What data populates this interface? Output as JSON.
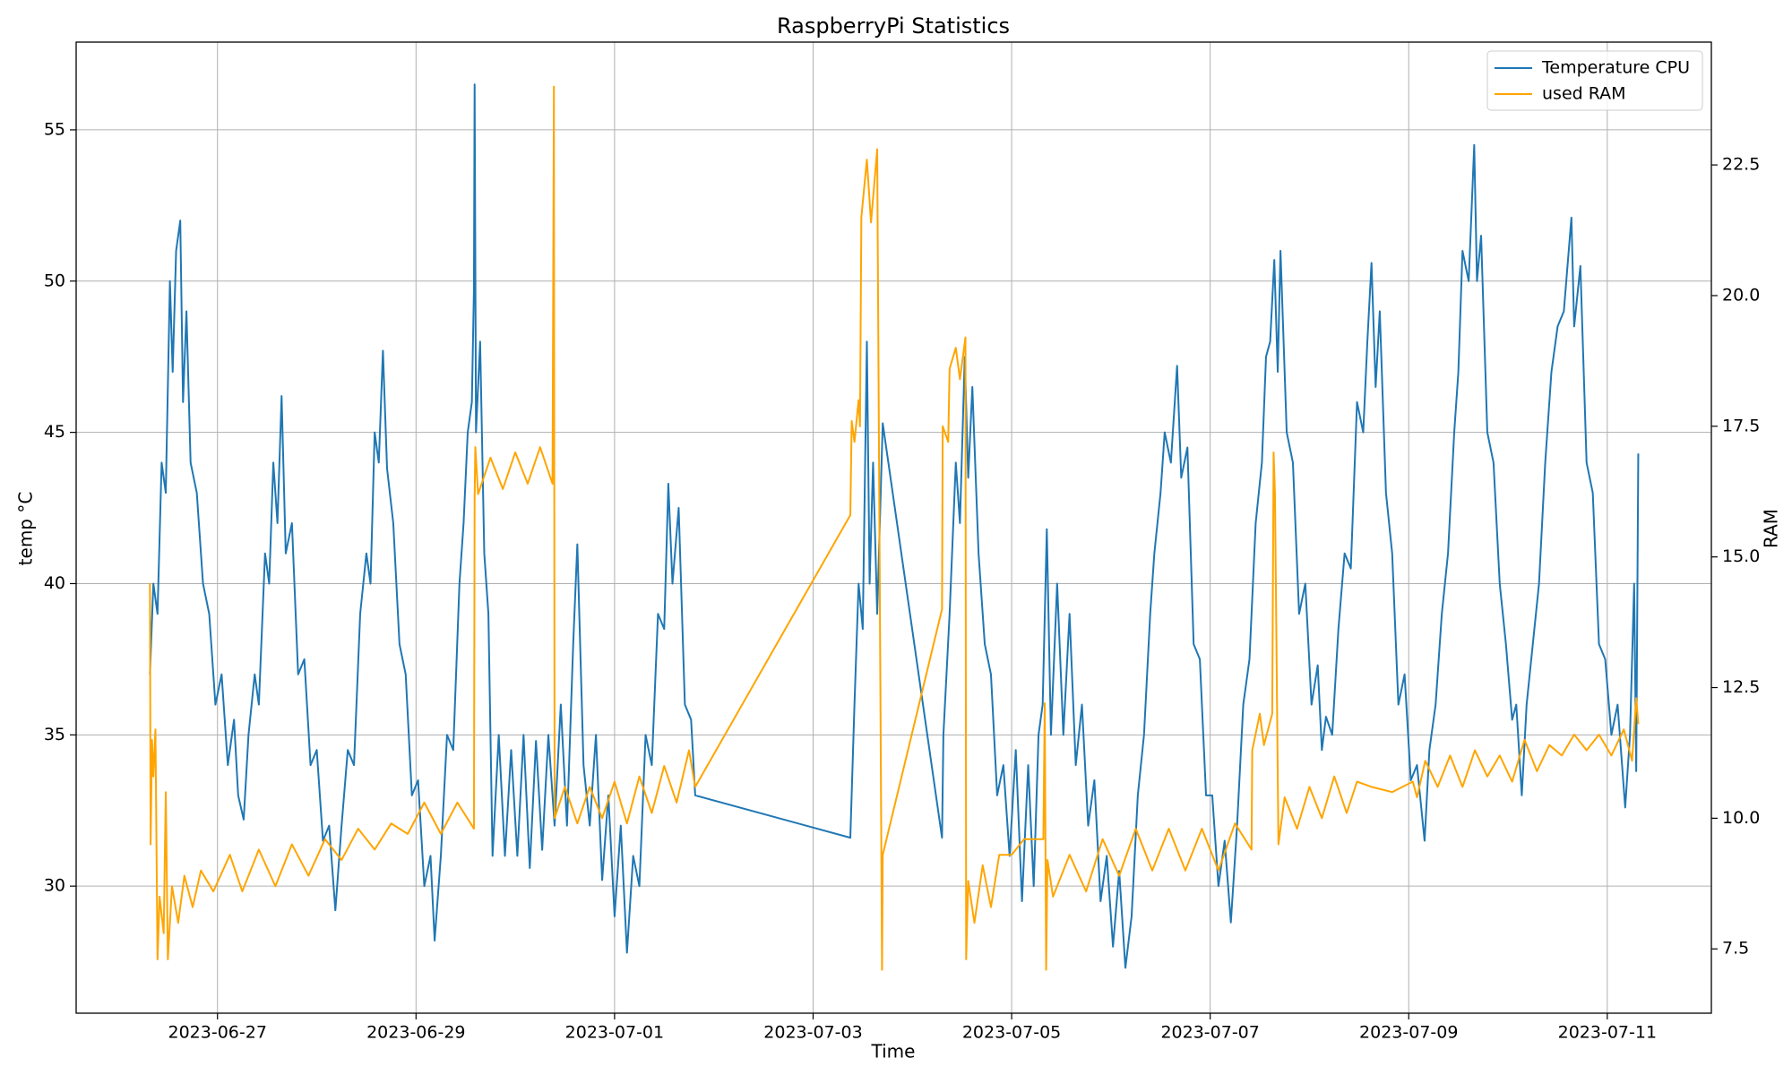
{
  "chart_data": {
    "type": "line",
    "title": "RaspberryPi Statistics",
    "x_label": "Time",
    "y_label": "temp °C",
    "y2_label": "RAM",
    "xlim": [
      "2023-06-25T13:50",
      "2023-07-12T01:10"
    ],
    "xticks": [
      "2023-06-27",
      "2023-06-29",
      "2023-07-01",
      "2023-07-03",
      "2023-07-05",
      "2023-07-07",
      "2023-07-09",
      "2023-07-11"
    ],
    "ylim": [
      25.8,
      57.9
    ],
    "yticks": [
      30,
      35,
      40,
      45,
      50,
      55
    ],
    "y2lim": [
      6.27,
      24.85
    ],
    "y2ticks": [
      7.5,
      {
        "value": 10,
        "label": "10.0"
      },
      12.5,
      {
        "value": 15,
        "label": "15.0"
      },
      17.5,
      {
        "value": 20,
        "label": "20.0"
      },
      22.5
    ],
    "grid": true,
    "legend": "upper right",
    "series": [
      {
        "name": "Temperature CPU",
        "color": "#1f77b4",
        "axis": "y",
        "x": [
          "2023-06-26T07:40",
          "2023-06-26T08:30",
          "2023-06-26T09:30",
          "2023-06-26T10:30",
          "2023-06-26T11:30",
          "2023-06-26T12:30",
          "2023-06-26T13:10",
          "2023-06-26T14:00",
          "2023-06-26T15:00",
          "2023-06-26T15:40",
          "2023-06-26T16:30",
          "2023-06-26T17:30",
          "2023-06-26T19:00",
          "2023-06-26T20:30",
          "2023-06-26T22:00",
          "2023-06-26T23:30",
          "2023-06-27T01:00",
          "2023-06-27T02:30",
          "2023-06-27T04:00",
          "2023-06-27T05:00",
          "2023-06-27T06:20",
          "2023-06-27T07:30",
          "2023-06-27T09:00",
          "2023-06-27T10:00",
          "2023-06-27T11:30",
          "2023-06-27T12:30",
          "2023-06-27T13:30",
          "2023-06-27T14:30",
          "2023-06-27T15:30",
          "2023-06-27T16:30",
          "2023-06-27T18:00",
          "2023-06-27T19:30",
          "2023-06-27T21:00",
          "2023-06-27T22:30",
          "2023-06-28T00:00",
          "2023-06-28T01:30",
          "2023-06-28T03:00",
          "2023-06-28T04:30",
          "2023-06-28T06:00",
          "2023-06-28T07:30",
          "2023-06-28T09:00",
          "2023-06-28T10:30",
          "2023-06-28T12:00",
          "2023-06-28T13:00",
          "2023-06-28T14:00",
          "2023-06-28T15:00",
          "2023-06-28T16:00",
          "2023-06-28T17:00",
          "2023-06-28T18:30",
          "2023-06-28T20:00",
          "2023-06-28T21:30",
          "2023-06-28T23:00",
          "2023-06-29T00:30",
          "2023-06-29T02:00",
          "2023-06-29T03:30",
          "2023-06-29T04:30",
          "2023-06-29T06:00",
          "2023-06-29T07:30",
          "2023-06-29T09:00",
          "2023-06-29T10:30",
          "2023-06-29T11:30",
          "2023-06-29T12:30",
          "2023-06-29T13:30",
          "2023-06-29T14:00",
          "2023-06-29T14:10",
          "2023-06-29T14:30",
          "2023-06-29T15:30",
          "2023-06-29T16:30",
          "2023-06-29T17:30",
          "2023-06-29T18:30",
          "2023-06-29T20:00",
          "2023-06-29T21:30",
          "2023-06-29T23:00",
          "2023-06-30T00:30",
          "2023-06-30T02:00",
          "2023-06-30T03:30",
          "2023-06-30T05:00",
          "2023-06-30T06:30",
          "2023-06-30T08:00",
          "2023-06-30T09:30",
          "2023-06-30T11:00",
          "2023-06-30T12:30",
          "2023-06-30T14:00",
          "2023-06-30T15:00",
          "2023-06-30T16:30",
          "2023-06-30T18:00",
          "2023-06-30T19:30",
          "2023-06-30T21:00",
          "2023-06-30T22:30",
          "2023-07-01T00:00",
          "2023-07-01T01:30",
          "2023-07-01T03:00",
          "2023-07-01T04:30",
          "2023-07-01T06:00",
          "2023-07-01T07:30",
          "2023-07-01T09:00",
          "2023-07-01T10:30",
          "2023-07-01T12:00",
          "2023-07-01T13:00",
          "2023-07-01T14:00",
          "2023-07-01T15:30",
          "2023-07-01T17:00",
          "2023-07-01T18:30",
          "2023-07-01T19:30",
          "2023-07-03T09:00",
          "2023-07-03T10:00",
          "2023-07-03T11:00",
          "2023-07-03T12:00",
          "2023-07-03T13:00",
          "2023-07-03T13:40",
          "2023-07-03T14:30",
          "2023-07-03T15:30",
          "2023-07-03T16:50",
          "2023-07-04T07:10",
          "2023-07-04T07:30",
          "2023-07-04T09:00",
          "2023-07-04T10:30",
          "2023-07-04T11:30",
          "2023-07-04T12:40",
          "2023-07-04T13:30",
          "2023-07-04T14:30",
          "2023-07-04T16:00",
          "2023-07-04T17:30",
          "2023-07-04T19:00",
          "2023-07-04T20:30",
          "2023-07-04T22:00",
          "2023-07-04T23:30",
          "2023-07-05T01:00",
          "2023-07-05T02:30",
          "2023-07-05T04:00",
          "2023-07-05T05:20",
          "2023-07-05T06:30",
          "2023-07-05T07:30",
          "2023-07-05T08:30",
          "2023-07-05T09:30",
          "2023-07-05T11:00",
          "2023-07-05T12:30",
          "2023-07-05T14:00",
          "2023-07-05T15:30",
          "2023-07-05T17:00",
          "2023-07-05T18:30",
          "2023-07-05T20:00",
          "2023-07-05T21:30",
          "2023-07-05T23:00",
          "2023-07-06T00:30",
          "2023-07-06T02:00",
          "2023-07-06T03:30",
          "2023-07-06T05:00",
          "2023-07-06T06:30",
          "2023-07-06T08:00",
          "2023-07-06T09:30",
          "2023-07-06T10:30",
          "2023-07-06T12:00",
          "2023-07-06T13:00",
          "2023-07-06T14:30",
          "2023-07-06T16:00",
          "2023-07-06T17:00",
          "2023-07-06T18:30",
          "2023-07-06T20:00",
          "2023-07-06T21:30",
          "2023-07-06T23:00",
          "2023-07-07T00:30",
          "2023-07-07T02:00",
          "2023-07-07T03:30",
          "2023-07-07T05:00",
          "2023-07-07T06:30",
          "2023-07-07T08:00",
          "2023-07-07T09:30",
          "2023-07-07T11:00",
          "2023-07-07T12:30",
          "2023-07-07T13:30",
          "2023-07-07T14:30",
          "2023-07-07T15:30",
          "2023-07-07T16:20",
          "2023-07-07T17:00",
          "2023-07-07T18:30",
          "2023-07-07T20:00",
          "2023-07-07T21:30",
          "2023-07-07T23:00",
          "2023-07-08T00:30",
          "2023-07-08T02:00",
          "2023-07-08T03:00",
          "2023-07-08T04:00",
          "2023-07-08T05:30",
          "2023-07-08T07:00",
          "2023-07-08T08:30",
          "2023-07-08T10:00",
          "2023-07-08T11:30",
          "2023-07-08T13:00",
          "2023-07-08T14:00",
          "2023-07-08T15:00",
          "2023-07-08T16:00",
          "2023-07-08T17:00",
          "2023-07-08T18:30",
          "2023-07-08T20:00",
          "2023-07-08T21:30",
          "2023-07-08T23:00",
          "2023-07-09T00:30",
          "2023-07-09T02:00",
          "2023-07-09T03:50",
          "2023-07-09T05:00",
          "2023-07-09T06:30",
          "2023-07-09T08:00",
          "2023-07-09T09:30",
          "2023-07-09T11:00",
          "2023-07-09T12:00",
          "2023-07-09T13:00",
          "2023-07-09T14:30",
          "2023-07-09T15:50",
          "2023-07-09T16:30",
          "2023-07-09T17:30",
          "2023-07-09T19:00",
          "2023-07-09T20:30",
          "2023-07-09T22:00",
          "2023-07-09T23:30",
          "2023-07-10T01:00",
          "2023-07-10T02:00",
          "2023-07-10T03:20",
          "2023-07-10T04:30",
          "2023-07-10T06:00",
          "2023-07-10T07:30",
          "2023-07-10T09:00",
          "2023-07-10T10:30",
          "2023-07-10T12:00",
          "2023-07-10T13:30",
          "2023-07-10T15:20",
          "2023-07-10T16:00",
          "2023-07-10T17:30",
          "2023-07-10T19:00",
          "2023-07-10T20:30",
          "2023-07-10T22:00",
          "2023-07-10T23:30",
          "2023-07-11T01:00",
          "2023-07-11T02:30",
          "2023-07-11T04:20",
          "2023-07-11T05:30",
          "2023-07-11T06:30",
          "2023-07-11T07:00",
          "2023-07-11T07:30"
        ],
        "values": [
          37,
          40,
          39,
          44,
          43,
          50,
          47,
          51,
          52,
          46,
          49,
          44,
          43,
          40,
          39,
          36,
          37,
          34,
          35.5,
          33,
          32.2,
          35,
          37,
          36,
          41,
          40,
          44,
          42,
          46.2,
          41,
          42,
          37,
          37.5,
          34,
          34.5,
          31.5,
          32,
          29.2,
          32,
          34.5,
          34,
          39,
          41,
          40,
          45,
          44,
          47.7,
          43.8,
          42,
          38,
          37,
          33,
          33.5,
          30,
          31,
          28.2,
          31,
          35,
          34.5,
          40,
          42,
          45,
          46,
          49.7,
          56.5,
          45,
          48,
          41,
          39,
          31,
          35,
          31,
          34.5,
          31,
          35,
          30.6,
          34.8,
          31.2,
          35,
          32,
          36,
          32,
          38,
          41.3,
          34,
          32,
          35,
          30.2,
          33,
          29,
          32,
          27.8,
          31,
          30,
          35,
          34,
          39,
          38.5,
          43.3,
          40,
          42.5,
          36,
          35.5,
          33,
          31.6,
          36,
          40,
          38.5,
          48,
          40,
          44,
          39,
          45.3,
          31.6,
          35,
          39,
          44,
          42,
          47.5,
          43.5,
          46.5,
          41,
          38,
          37,
          33,
          34,
          31,
          34.5,
          29.5,
          34,
          30,
          35,
          36,
          41.8,
          35,
          40,
          35,
          39,
          34,
          36,
          32,
          33.5,
          29.5,
          31,
          28,
          30.5,
          27.3,
          29,
          33,
          35,
          39,
          41,
          43,
          45,
          44,
          47.2,
          43.5,
          44.5,
          38,
          37.5,
          33,
          33,
          30,
          31.5,
          28.8,
          32,
          36,
          37.5,
          42,
          44,
          47.5,
          48,
          50.7,
          47,
          51,
          45,
          44,
          39,
          40,
          36,
          37.3,
          34.5,
          35.6,
          35,
          38.5,
          41,
          40.5,
          46,
          45,
          48,
          50.6,
          46.5,
          49,
          43,
          41,
          36,
          37,
          33.5,
          34,
          31.5,
          34.5,
          36,
          39,
          41,
          45,
          47,
          51,
          50,
          54.5,
          50,
          51.5,
          45,
          44,
          40,
          38,
          35.5,
          36,
          33,
          36,
          38,
          40,
          44,
          47,
          48.5,
          49,
          52.1,
          48.5,
          50.5,
          44,
          43,
          38,
          37.5,
          35,
          36,
          32.6,
          35,
          40,
          33.8,
          44.3
        ]
      },
      {
        "name": "used RAM",
        "color": "#ffa500",
        "axis": "y2",
        "x": [
          "2023-06-26T07:40",
          "2023-06-26T07:50",
          "2023-06-26T08:10",
          "2023-06-26T08:30",
          "2023-06-26T09:00",
          "2023-06-26T09:30",
          "2023-06-26T10:00",
          "2023-06-26T11:00",
          "2023-06-26T11:30",
          "2023-06-26T12:00",
          "2023-06-26T13:00",
          "2023-06-26T14:30",
          "2023-06-26T16:00",
          "2023-06-26T18:00",
          "2023-06-26T20:00",
          "2023-06-26T23:00",
          "2023-06-27T03:00",
          "2023-06-27T06:00",
          "2023-06-27T10:00",
          "2023-06-27T14:00",
          "2023-06-27T18:00",
          "2023-06-27T22:00",
          "2023-06-28T02:00",
          "2023-06-28T06:00",
          "2023-06-28T10:00",
          "2023-06-28T14:00",
          "2023-06-28T18:00",
          "2023-06-28T22:00",
          "2023-06-29T02:00",
          "2023-06-29T06:00",
          "2023-06-29T10:00",
          "2023-06-29T14:00",
          "2023-06-29T14:10",
          "2023-06-29T14:20",
          "2023-06-29T15:00",
          "2023-06-29T18:00",
          "2023-06-29T21:00",
          "2023-06-30T00:00",
          "2023-06-30T03:00",
          "2023-06-30T06:00",
          "2023-06-30T09:00",
          "2023-06-30T09:20",
          "2023-06-30T09:30",
          "2023-06-30T12:00",
          "2023-06-30T15:00",
          "2023-06-30T18:00",
          "2023-06-30T21:00",
          "2023-07-01T00:00",
          "2023-07-01T03:00",
          "2023-07-01T06:00",
          "2023-07-01T09:00",
          "2023-07-01T12:00",
          "2023-07-01T15:00",
          "2023-07-01T18:00",
          "2023-07-01T19:30",
          "2023-07-03T09:00",
          "2023-07-03T09:20",
          "2023-07-03T10:00",
          "2023-07-03T11:00",
          "2023-07-03T11:20",
          "2023-07-03T11:40",
          "2023-07-03T13:00",
          "2023-07-03T14:00",
          "2023-07-03T15:30",
          "2023-07-03T16:40",
          "2023-07-03T16:50",
          "2023-07-04T07:10",
          "2023-07-04T07:20",
          "2023-07-04T08:40",
          "2023-07-04T09:00",
          "2023-07-04T10:30",
          "2023-07-04T11:30",
          "2023-07-04T12:50",
          "2023-07-04T13:00",
          "2023-07-04T13:30",
          "2023-07-04T15:00",
          "2023-07-04T17:00",
          "2023-07-04T19:00",
          "2023-07-04T21:00",
          "2023-07-05T00:00",
          "2023-07-05T03:00",
          "2023-07-05T07:40",
          "2023-07-05T08:00",
          "2023-07-05T08:20",
          "2023-07-05T08:40",
          "2023-07-05T10:00",
          "2023-07-05T14:00",
          "2023-07-05T18:00",
          "2023-07-05T22:00",
          "2023-07-06T02:00",
          "2023-07-06T06:00",
          "2023-07-06T10:00",
          "2023-07-06T14:00",
          "2023-07-06T18:00",
          "2023-07-06T22:00",
          "2023-07-07T02:00",
          "2023-07-07T06:00",
          "2023-07-07T10:00",
          "2023-07-07T10:10",
          "2023-07-07T12:00",
          "2023-07-07T13:00",
          "2023-07-07T15:00",
          "2023-07-07T15:20",
          "2023-07-07T15:40",
          "2023-07-07T16:30",
          "2023-07-07T18:00",
          "2023-07-07T21:00",
          "2023-07-08T00:00",
          "2023-07-08T03:00",
          "2023-07-08T06:00",
          "2023-07-08T09:00",
          "2023-07-08T11:30",
          "2023-07-08T15:00",
          "2023-07-08T20:00",
          "2023-07-09T01:00",
          "2023-07-09T02:00",
          "2023-07-09T04:00",
          "2023-07-09T07:00",
          "2023-07-09T10:00",
          "2023-07-09T13:00",
          "2023-07-09T16:00",
          "2023-07-09T19:00",
          "2023-07-09T22:00",
          "2023-07-10T01:00",
          "2023-07-10T04:00",
          "2023-07-10T07:00",
          "2023-07-10T10:00",
          "2023-07-10T13:00",
          "2023-07-10T16:00",
          "2023-07-10T19:00",
          "2023-07-10T22:00",
          "2023-07-11T01:00",
          "2023-07-11T04:00",
          "2023-07-11T06:00",
          "2023-07-11T07:00",
          "2023-07-11T07:30"
        ],
        "values": [
          14.5,
          9.5,
          11.5,
          10.8,
          11.7,
          7.3,
          8.5,
          7.8,
          10.5,
          7.3,
          8.7,
          8.0,
          8.9,
          8.3,
          9.0,
          8.6,
          9.3,
          8.6,
          9.4,
          8.7,
          9.5,
          8.9,
          9.6,
          9.2,
          9.8,
          9.4,
          9.9,
          9.7,
          10.3,
          9.7,
          10.3,
          9.8,
          16.1,
          17.1,
          16.2,
          16.9,
          16.3,
          17.0,
          16.4,
          17.1,
          16.4,
          24.0,
          10.0,
          10.6,
          9.9,
          10.6,
          10.0,
          10.7,
          9.9,
          10.8,
          10.1,
          11.0,
          10.3,
          11.3,
          10.6,
          15.8,
          17.6,
          17.2,
          18.0,
          17.5,
          21.5,
          22.6,
          21.4,
          22.8,
          7.1,
          9.3,
          14.0,
          17.5,
          17.2,
          18.6,
          19.0,
          18.4,
          19.2,
          7.3,
          8.8,
          8.0,
          9.1,
          8.3,
          9.3,
          9.3,
          9.6,
          9.6,
          12.2,
          7.1,
          9.2,
          8.5,
          9.3,
          8.6,
          9.6,
          8.9,
          9.8,
          9.0,
          9.8,
          9.0,
          9.8,
          9.0,
          9.9,
          9.4,
          11.3,
          12.0,
          11.4,
          12.0,
          17.0,
          16.2,
          9.5,
          10.4,
          9.8,
          10.6,
          10.0,
          10.8,
          10.1,
          10.7,
          10.6,
          10.5,
          10.7,
          10.4,
          11.1,
          10.6,
          11.2,
          10.6,
          11.3,
          10.8,
          11.2,
          10.7,
          11.5,
          10.9,
          11.4,
          11.2,
          11.6,
          11.3,
          11.6,
          11.2,
          11.7,
          11.1,
          12.3,
          11.8
        ]
      }
    ]
  }
}
